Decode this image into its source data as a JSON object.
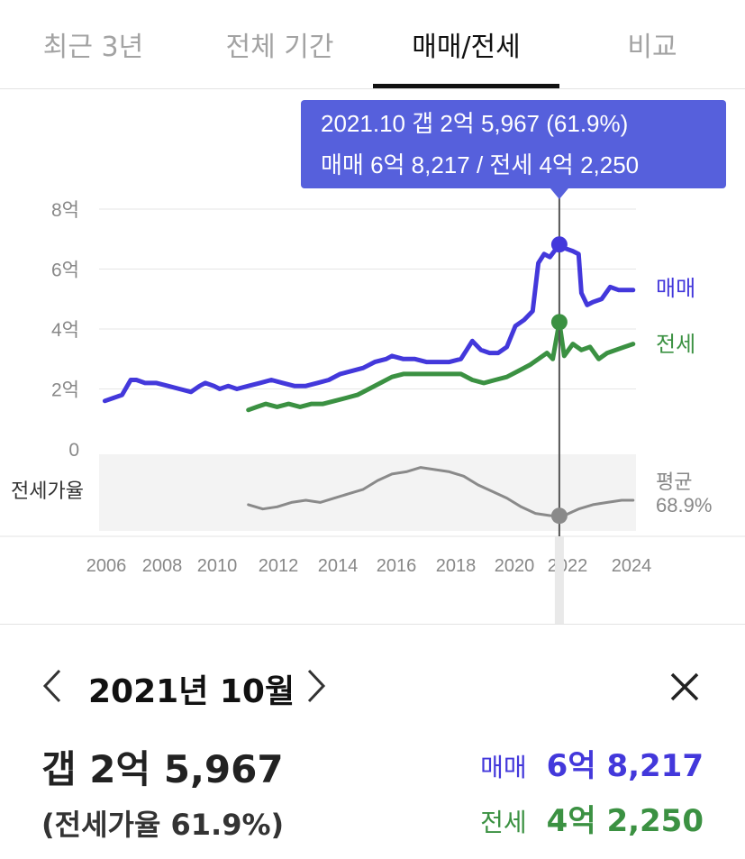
{
  "tabs": [
    {
      "label": "최근 3년"
    },
    {
      "label": "전체 기간"
    },
    {
      "label": "매매/전세"
    },
    {
      "label": "비교"
    }
  ],
  "colors": {
    "sale": "#4338db",
    "jeonse": "#3b9142",
    "ratio": "#8a8a8a",
    "tooltip_bg": "#5660dc",
    "tab_active": "#111111",
    "tab_inactive": "#a3a3a3"
  },
  "tooltip": {
    "line1": "2021.10  갭 2억 5,967 (61.9%)",
    "line2": "매매 6억 8,217 / 전세 4억 2,250"
  },
  "chart_data": {
    "type": "line",
    "x_unit": "year",
    "xlim": [
      2005.8,
      2024.5
    ],
    "x_ticks": [
      "2006",
      "2008",
      "2010",
      "2012",
      "2014",
      "2016",
      "2018",
      "2020",
      "2022",
      "2024"
    ],
    "y_unit": "억",
    "ylim": [
      0,
      8
    ],
    "y_ticks": [
      "8억",
      "6억",
      "4억",
      "2억",
      "0"
    ],
    "series": [
      {
        "name": "매매",
        "color": "#4338db",
        "x": [
          2006.0,
          2006.3,
          2006.6,
          2006.9,
          2007.1,
          2007.4,
          2007.8,
          2008.2,
          2008.6,
          2009.0,
          2009.3,
          2009.5,
          2009.8,
          2010.0,
          2010.3,
          2010.6,
          2011.0,
          2011.4,
          2011.8,
          2012.2,
          2012.6,
          2013.0,
          2013.4,
          2013.8,
          2014.2,
          2014.6,
          2015.0,
          2015.4,
          2015.8,
          2016.0,
          2016.4,
          2016.8,
          2017.2,
          2017.6,
          2018.0,
          2018.4,
          2018.6,
          2018.8,
          2019.1,
          2019.4,
          2019.7,
          2020.0,
          2020.3,
          2020.6,
          2020.9,
          2021.1,
          2021.3,
          2021.5,
          2021.83,
          2022.0,
          2022.3,
          2022.5,
          2022.6,
          2022.8,
          2023.0,
          2023.3,
          2023.6,
          2023.9,
          2024.2,
          2024.4
        ],
        "y": [
          1.6,
          1.7,
          1.8,
          2.3,
          2.3,
          2.2,
          2.2,
          2.1,
          2.0,
          1.9,
          2.1,
          2.2,
          2.1,
          2.0,
          2.1,
          2.0,
          2.1,
          2.2,
          2.3,
          2.2,
          2.1,
          2.1,
          2.2,
          2.3,
          2.5,
          2.6,
          2.7,
          2.9,
          3.0,
          3.1,
          3.0,
          3.0,
          2.9,
          2.9,
          2.9,
          3.0,
          3.3,
          3.6,
          3.3,
          3.2,
          3.2,
          3.4,
          4.1,
          4.3,
          4.6,
          6.2,
          6.5,
          6.4,
          6.82,
          6.7,
          6.6,
          6.5,
          5.2,
          4.8,
          4.9,
          5.0,
          5.4,
          5.3,
          5.3,
          5.3
        ]
      },
      {
        "name": "전세",
        "color": "#3b9142",
        "x": [
          2011.0,
          2011.3,
          2011.6,
          2012.0,
          2012.4,
          2012.8,
          2013.2,
          2013.6,
          2014.0,
          2014.4,
          2014.8,
          2015.2,
          2015.6,
          2016.0,
          2016.4,
          2016.8,
          2017.2,
          2017.6,
          2018.0,
          2018.4,
          2018.8,
          2019.2,
          2019.6,
          2020.0,
          2020.4,
          2020.8,
          2021.1,
          2021.4,
          2021.6,
          2021.83,
          2022.0,
          2022.3,
          2022.6,
          2022.9,
          2023.2,
          2023.5,
          2023.8,
          2024.1,
          2024.4
        ],
        "y": [
          1.3,
          1.4,
          1.5,
          1.4,
          1.5,
          1.4,
          1.5,
          1.5,
          1.6,
          1.7,
          1.8,
          2.0,
          2.2,
          2.4,
          2.5,
          2.5,
          2.5,
          2.5,
          2.5,
          2.5,
          2.3,
          2.2,
          2.3,
          2.4,
          2.6,
          2.8,
          3.0,
          3.2,
          3.0,
          4.23,
          3.1,
          3.5,
          3.3,
          3.4,
          3.0,
          3.2,
          3.3,
          3.4,
          3.5
        ]
      },
      {
        "name": "전세가율",
        "unit": "%",
        "x": [
          2011.0,
          2011.5,
          2012.0,
          2012.5,
          2013.0,
          2013.5,
          2014.0,
          2014.5,
          2015.0,
          2015.5,
          2016.0,
          2016.5,
          2017.0,
          2017.5,
          2018.0,
          2018.5,
          2019.0,
          2019.5,
          2020.0,
          2020.5,
          2021.0,
          2021.5,
          2021.83,
          2022.0,
          2022.5,
          2023.0,
          2023.5,
          2024.0,
          2024.4
        ],
        "y": [
          67,
          65,
          66,
          68,
          69,
          68,
          70,
          72,
          74,
          78,
          81,
          82,
          84,
          83,
          82,
          80,
          76,
          73,
          70,
          66,
          63,
          62,
          61.9,
          62,
          65,
          67,
          68,
          69,
          69
        ]
      }
    ],
    "reference_line": {
      "label": "평균",
      "value_label": "68.9%",
      "value": 68.9
    },
    "ratio_label": "전세가율",
    "highlight": {
      "x": 2021.83,
      "sale": 6.82,
      "jeonse": 4.23,
      "ratio": 61.9
    }
  },
  "labels": {
    "sale_series": "매매",
    "jeonse_series": "전세",
    "ratio_row": "전세가율",
    "avg_title": "평균",
    "avg_value": "68.9%"
  },
  "detail": {
    "title": "2021년 10월",
    "gap": "갭 2억 5,967",
    "ratio": "(전세가율 61.9%)",
    "sale_label": "매매",
    "sale_value": "6억 8,217",
    "jeonse_label": "전세",
    "jeonse_value": "4억 2,250"
  }
}
